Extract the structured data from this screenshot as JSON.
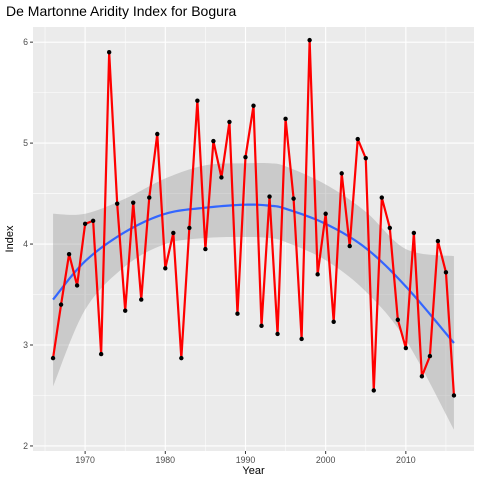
{
  "chart_data": {
    "type": "line",
    "title": "De Martonne Aridity Index for Bogura",
    "xlabel": "Year",
    "ylabel": "Index",
    "xlim": [
      1963.5,
      2018.5
    ],
    "ylim": [
      1.95,
      6.15
    ],
    "xticks": [
      1970,
      1980,
      1990,
      2000,
      2010
    ],
    "yticks": [
      2,
      3,
      4,
      5,
      6
    ],
    "grid": true,
    "legend": "none",
    "series": [
      {
        "x": [
          1966,
          1967,
          1968,
          1969,
          1970,
          1971,
          1972,
          1973,
          1974,
          1975,
          1976,
          1977,
          1978,
          1979,
          1980,
          1981,
          1982,
          1983,
          1984,
          1985,
          1986,
          1987,
          1988,
          1989,
          1990,
          1991,
          1992,
          1993,
          1994,
          1995,
          1996,
          1997,
          1998,
          1999,
          2000,
          2001,
          2002,
          2003,
          2004,
          2005,
          2006,
          2007,
          2008,
          2009,
          2010,
          2011,
          2012,
          2013,
          2014,
          2015,
          2016
        ],
        "y": [
          2.87,
          3.4,
          3.9,
          3.59,
          4.2,
          4.23,
          2.91,
          5.9,
          4.4,
          3.34,
          4.41,
          3.45,
          4.46,
          5.09,
          3.76,
          4.11,
          2.87,
          4.16,
          5.42,
          3.95,
          5.02,
          4.66,
          5.21,
          3.31,
          4.86,
          5.37,
          3.19,
          4.47,
          3.11,
          5.24,
          4.45,
          3.06,
          6.02,
          3.7,
          4.3,
          3.23,
          4.7,
          3.98,
          5.04,
          4.85,
          2.55,
          4.46,
          4.16,
          3.25,
          2.97,
          4.11,
          2.69,
          2.89,
          4.03,
          3.72,
          2.5
        ]
      }
    ],
    "smooth": {
      "x": [
        1966,
        1970,
        1975,
        1980,
        1985,
        1990,
        1993,
        1995,
        2000,
        2005,
        2010,
        2016
      ],
      "y": [
        3.45,
        3.83,
        4.12,
        4.3,
        4.36,
        4.39,
        4.38,
        4.35,
        4.2,
        3.96,
        3.58,
        3.02
      ],
      "lower": [
        2.59,
        3.35,
        3.78,
        4.0,
        4.06,
        4.07,
        4.06,
        4.02,
        3.84,
        3.53,
        3.05,
        2.16
      ],
      "upper": [
        4.3,
        4.3,
        4.45,
        4.65,
        4.78,
        4.8,
        4.8,
        4.77,
        4.59,
        4.32,
        3.95,
        3.88
      ]
    },
    "colors": {
      "line": "#FF0000",
      "point": "#000000",
      "smooth": "#3366FF",
      "ribbon": "#999999",
      "panel": "#EBEBEB",
      "grid": "#FFFFFF"
    }
  }
}
